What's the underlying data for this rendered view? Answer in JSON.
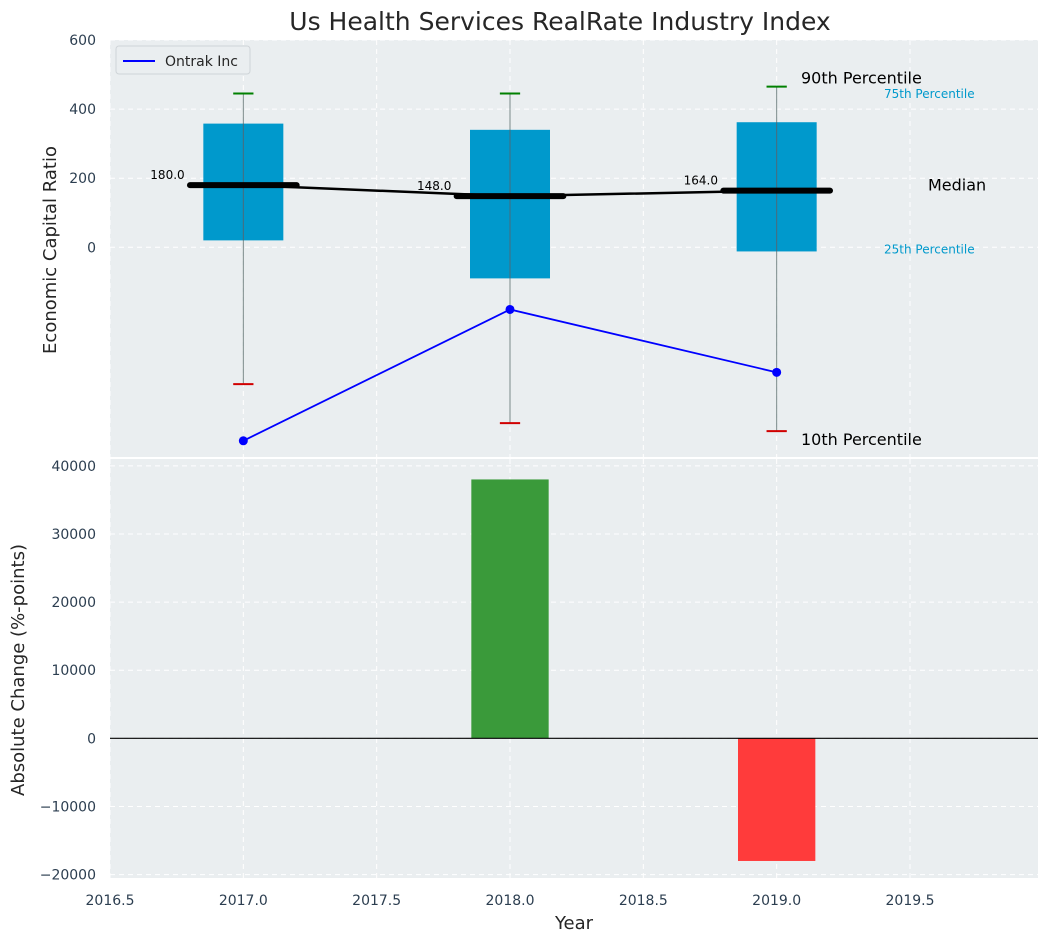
{
  "chart_data": [
    {
      "type": "box",
      "title": "Us Health Services RealRate Industry Index",
      "ylabel": "Economic Capital Ratio",
      "ylim": [
        -607,
        600
      ],
      "yticks": [
        0,
        200,
        400,
        600
      ],
      "x": [
        2017.0,
        2018.0,
        2019.0
      ],
      "grid": true,
      "legend_position": "top-left",
      "percentiles": {
        "p10": [
          -396,
          -509,
          -532
        ],
        "p25": [
          20,
          -90,
          -12
        ],
        "median": [
          180,
          148,
          164
        ],
        "p75": [
          358,
          340,
          362
        ],
        "p90": [
          445,
          445,
          465
        ]
      },
      "median_labels": [
        "180.0",
        "148.0",
        "164.0"
      ],
      "series": [
        {
          "name": "Ontrak Inc",
          "color": "#0000ff",
          "values": [
            -560,
            -180,
            -362
          ]
        }
      ],
      "annotations": {
        "p90": "90th Percentile",
        "p75": "75th Percentile",
        "median": "Median",
        "p25": "25th Percentile",
        "p10": "10th Percentile"
      },
      "colors": {
        "box": "#0099cc",
        "p90_cap": "#008000",
        "p10_cap": "#d00000",
        "median": "#000000",
        "axes_bg": "#eaeef0",
        "label_cyan": "#0099cc"
      }
    },
    {
      "type": "bar",
      "xlabel": "Year",
      "ylabel": "Absolute Change (%-points)",
      "ylim": [
        -20500,
        41000
      ],
      "xlim": [
        2016.5,
        2019.98
      ],
      "yticks": [
        -20000,
        -10000,
        0,
        10000,
        20000,
        30000,
        40000
      ],
      "xticks": [
        2016.5,
        2017.0,
        2017.5,
        2018.0,
        2018.5,
        2019.0,
        2019.5
      ],
      "xtick_labels": [
        "2016.5",
        "2017.0",
        "2017.5",
        "2018.0",
        "2018.5",
        "2019.0",
        "2019.5"
      ],
      "ytick_labels": [
        "−20000",
        "−10000",
        "0",
        "10000",
        "20000",
        "30000",
        "40000"
      ],
      "x": [
        2018.0,
        2019.0
      ],
      "values": [
        38000,
        -18000
      ],
      "colors": [
        "#3a9a3a",
        "#ff3b3b"
      ]
    }
  ]
}
